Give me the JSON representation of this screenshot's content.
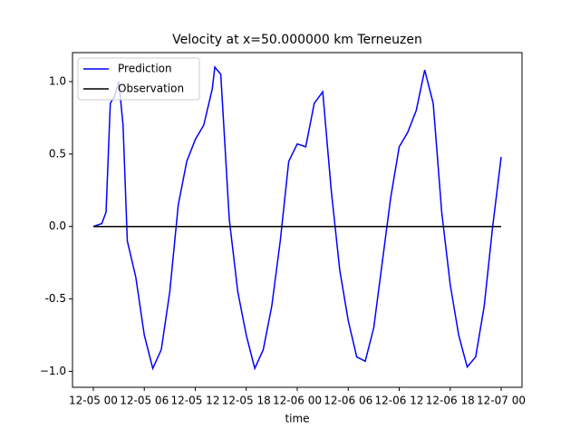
{
  "chart_data": {
    "type": "line",
    "title": "Velocity at x=50.000000 km Terneuzen",
    "xlabel": "time",
    "x": [
      0,
      1,
      1.5,
      2,
      2.5,
      3,
      3.5,
      4,
      5,
      6,
      7,
      8,
      9,
      10,
      11,
      12,
      13,
      14,
      14.3,
      15,
      16,
      17,
      18,
      19,
      20,
      21,
      22,
      23,
      24,
      25,
      26,
      27,
      28,
      29,
      30,
      31,
      32,
      33,
      34,
      35,
      36,
      37,
      38,
      39,
      40,
      41,
      42,
      43,
      44,
      45,
      46,
      47,
      48
    ],
    "series": [
      {
        "name": "Prediction",
        "color": "#0000ff",
        "values": [
          0,
          0.02,
          0.1,
          0.85,
          0.9,
          1.0,
          0.7,
          -0.1,
          -0.35,
          -0.75,
          -0.98,
          -0.85,
          -0.45,
          0.15,
          0.45,
          0.6,
          0.7,
          0.95,
          1.1,
          1.05,
          0.05,
          -0.45,
          -0.75,
          -0.98,
          -0.85,
          -0.55,
          -0.1,
          0.45,
          0.57,
          0.55,
          0.85,
          0.93,
          0.25,
          -0.3,
          -0.65,
          -0.9,
          -0.93,
          -0.7,
          -0.25,
          0.2,
          0.55,
          0.65,
          0.8,
          1.08,
          0.85,
          0.1,
          -0.4,
          -0.75,
          -0.97,
          -0.9,
          -0.55,
          0.0,
          0.48
        ]
      },
      {
        "name": "Observation",
        "color": "#000000",
        "values": [
          0,
          0,
          0,
          0,
          0,
          0,
          0,
          0,
          0,
          0,
          0,
          0,
          0,
          0,
          0,
          0,
          0,
          0,
          0,
          0,
          0,
          0,
          0,
          0,
          0,
          0,
          0,
          0,
          0,
          0,
          0,
          0,
          0,
          0,
          0,
          0,
          0,
          0,
          0,
          0,
          0,
          0,
          0,
          0,
          0,
          0,
          0,
          0,
          0,
          0,
          0,
          0,
          0
        ]
      }
    ],
    "xlim": [
      -2.45,
      50.45
    ],
    "xticks": [
      {
        "value": 0,
        "label": "12-05 00"
      },
      {
        "value": 6,
        "label": "12-05 06"
      },
      {
        "value": 12,
        "label": "12-05 12"
      },
      {
        "value": 18,
        "label": "12-05 18"
      },
      {
        "value": 24,
        "label": "12-06 00"
      },
      {
        "value": 30,
        "label": "12-06 06"
      },
      {
        "value": 36,
        "label": "12-06 12"
      },
      {
        "value": 42,
        "label": "12-06 18"
      },
      {
        "value": 48,
        "label": "12-07 00"
      }
    ],
    "ylim": [
      -1.11,
      1.2
    ],
    "yticks": [
      {
        "value": -1,
        "label": "−1.0"
      },
      -0.5,
      {
        "value": 0,
        "label": "0.0"
      },
      0.5,
      {
        "value": 1,
        "label": "1.0"
      }
    ],
    "legend": "upper left"
  }
}
